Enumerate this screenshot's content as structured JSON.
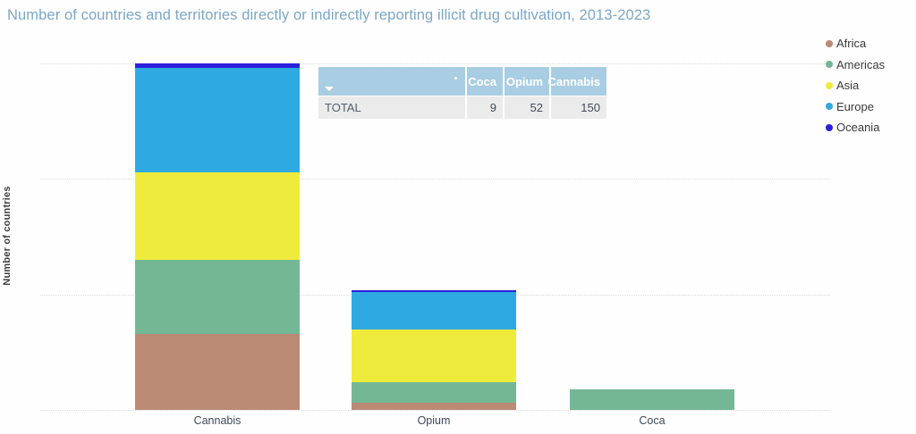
{
  "title": "Number of countries and territories directly or indirectly reporting illicit drug cultivation, 2013-2023",
  "colors": {
    "title_text": "#7ba7c6",
    "background": "#fffefe",
    "gridline": "#d9d9d9",
    "africa": "#bb8a75",
    "americas": "#73b795",
    "asia": "#efeb3c",
    "europe": "#2ea9e1",
    "oceania": "#2b21dc",
    "table_header_bg": "#a9cde2",
    "table_row_bg": "#ebebeb"
  },
  "legend": {
    "items": [
      {
        "label": "Africa",
        "color": "#bb8a75"
      },
      {
        "label": "Americas",
        "color": "#73b795"
      },
      {
        "label": "Asia",
        "color": "#efeb3c"
      },
      {
        "label": "Europe",
        "color": "#2ea9e1"
      },
      {
        "label": "Oceania",
        "color": "#2b21dc"
      }
    ]
  },
  "y_axis": {
    "title": "Number of countries",
    "ticks": [
      0,
      50,
      100,
      150
    ]
  },
  "summary_table": {
    "columns": [
      "",
      "Coca",
      "Opium",
      "Cannabis"
    ],
    "rows": [
      {
        "label": "TOTAL",
        "values": [
          9,
          52,
          150
        ]
      }
    ],
    "sort_icon": "caret-down",
    "totals_note": ""
  },
  "chart_data": {
    "type": "bar",
    "stacked": true,
    "title": "Number of countries and territories directly or indirectly reporting illicit drug cultivation, 2013-2023",
    "categories": [
      "Cannabis",
      "Opium",
      "Coca"
    ],
    "series": [
      {
        "name": "Africa",
        "color": "#bb8a75",
        "values": [
          33,
          3,
          0
        ]
      },
      {
        "name": "Americas",
        "color": "#73b795",
        "values": [
          32,
          9,
          9
        ]
      },
      {
        "name": "Asia",
        "color": "#efeb3c",
        "values": [
          38,
          23,
          0
        ]
      },
      {
        "name": "Europe",
        "color": "#2ea9e1",
        "values": [
          45,
          16,
          0
        ]
      },
      {
        "name": "Oceania",
        "color": "#2b21dc",
        "values": [
          2,
          1,
          0
        ]
      }
    ],
    "totals": [
      150,
      52,
      9
    ],
    "xlabel": "",
    "ylabel": "Number of countries",
    "ylim": [
      0,
      150
    ],
    "grid": "dotted-horizontal",
    "legend_position": "right"
  }
}
